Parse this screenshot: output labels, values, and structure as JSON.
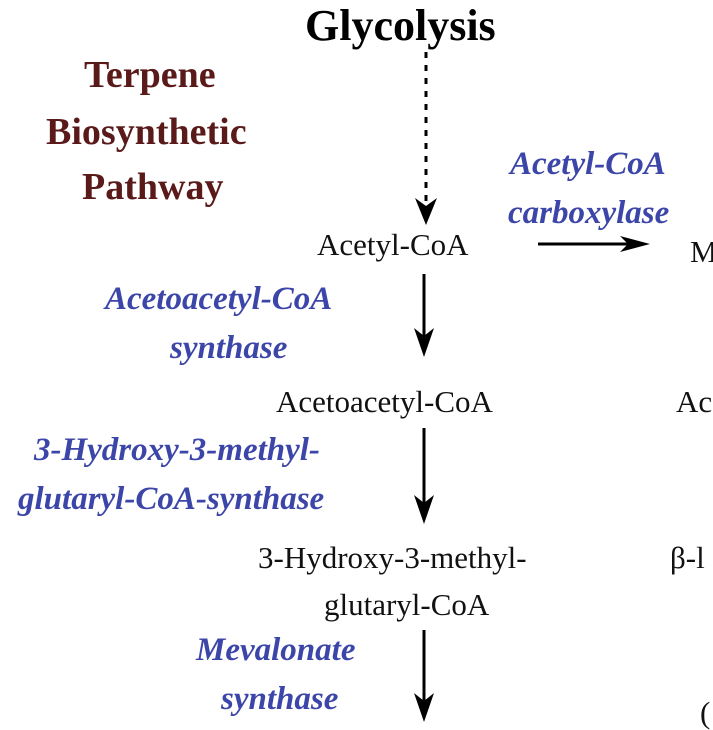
{
  "title": "Glycolysis",
  "pathway_title": [
    "Terpene",
    "Biosynthetic",
    "Pathway"
  ],
  "compounds": {
    "acetyl_coa": "Acetyl-CoA",
    "acetoacetyl_coa": "Acetoacetyl-CoA",
    "hmg_coa_line1": "3-Hydroxy-3-methyl-",
    "hmg_coa_line2": "glutaryl-CoA"
  },
  "enzymes": {
    "acetyl_coa_carboxylase": [
      "Acetyl-CoA",
      "carboxylase"
    ],
    "acetoacetyl_coa_synthase": [
      "Acetoacetyl-CoA",
      "synthase"
    ],
    "hmg_coa_synthase": [
      "3-Hydroxy-3-methyl-",
      "glutaryl-CoA-synthase"
    ],
    "mevalonate_synthase": [
      "Mevalonate",
      "synthase"
    ]
  },
  "cropped_right_labels": [
    "M",
    "Ac",
    "β-l",
    "("
  ],
  "colors": {
    "enzyme": "#3c46a8",
    "pathway_title": "#5a1a1a",
    "text": "#111111",
    "arrow": "#000000"
  }
}
